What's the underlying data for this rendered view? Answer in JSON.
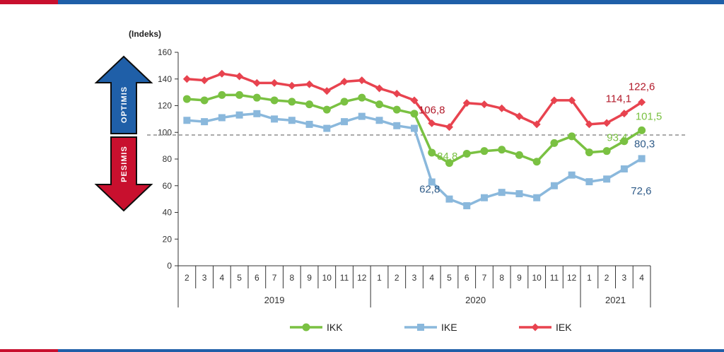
{
  "colors": {
    "top_accent_red": "#c8102e",
    "top_accent_blue": "#1f5fa8"
  },
  "chart_data": {
    "type": "line",
    "ylabel": "(Indeks)",
    "ylim": [
      0,
      160
    ],
    "yticks": [
      0,
      20,
      40,
      60,
      80,
      100,
      120,
      140,
      160
    ],
    "reference_line": 98,
    "categories": [
      "2",
      "3",
      "4",
      "5",
      "6",
      "7",
      "8",
      "9",
      "10",
      "11",
      "12",
      "1",
      "2",
      "3",
      "4",
      "5",
      "6",
      "7",
      "8",
      "9",
      "10",
      "11",
      "12",
      "1",
      "2",
      "3",
      "4"
    ],
    "year_groups": [
      {
        "label": "2019",
        "start": 0,
        "end": 10
      },
      {
        "label": "2020",
        "start": 11,
        "end": 22
      },
      {
        "label": "2021",
        "start": 23,
        "end": 26
      }
    ],
    "arrows": {
      "up": "OPTIMIS",
      "down": "PESIMIS"
    },
    "legend_position": "bottom",
    "series": [
      {
        "name": "IKK",
        "color": "#7ac142",
        "marker": "circle",
        "values": [
          125,
          124,
          128,
          128,
          126,
          124,
          123,
          121,
          117,
          123,
          126,
          121,
          117,
          114,
          84.8,
          77,
          84,
          86,
          87,
          83,
          78,
          92,
          97,
          85,
          86,
          93.4,
          101.5
        ]
      },
      {
        "name": "IKE",
        "color": "#8ab8dc",
        "marker": "square",
        "values": [
          109,
          108,
          111,
          113,
          114,
          110,
          109,
          106,
          103,
          108,
          112,
          109,
          105,
          103,
          62.8,
          50,
          45,
          51,
          55,
          54,
          51,
          60,
          68,
          63,
          65,
          72.6,
          80.3
        ]
      },
      {
        "name": "IEK",
        "color": "#e8434f",
        "marker": "diamond",
        "values": [
          140,
          139,
          144,
          142,
          137,
          137,
          135,
          136,
          131,
          138,
          139,
          133,
          129,
          124,
          106.8,
          104,
          122,
          121,
          118,
          112,
          106,
          124,
          124,
          106,
          107,
          114.1,
          122.6
        ]
      }
    ],
    "annotations": [
      {
        "series": "IEK",
        "index": 14,
        "text": "106,8"
      },
      {
        "series": "IKK",
        "index": 14,
        "text": "84,8"
      },
      {
        "series": "IKE",
        "index": 14,
        "text": "62,8"
      },
      {
        "series": "IEK",
        "index": 25,
        "text": "114,1"
      },
      {
        "series": "IEK",
        "index": 26,
        "text": "122,6"
      },
      {
        "series": "IKK",
        "index": 25,
        "text": "93,4"
      },
      {
        "series": "IKK",
        "index": 26,
        "text": "101,5"
      },
      {
        "series": "IKE",
        "index": 26,
        "text": "80,3"
      },
      {
        "series": "IKE",
        "index": 25,
        "text": "72,6"
      }
    ]
  }
}
